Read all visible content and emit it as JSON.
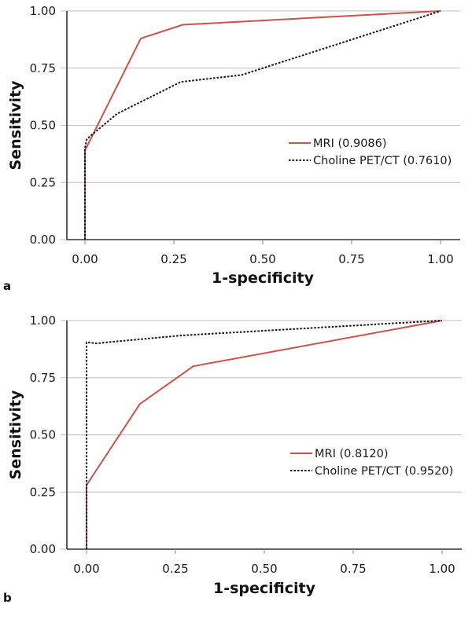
{
  "chart_data": [
    {
      "type": "line",
      "panel_label": "a",
      "title": "",
      "xlabel": "1-specificity",
      "ylabel": "Sensitivity",
      "xlim": [
        0,
        1
      ],
      "ylim": [
        0,
        1
      ],
      "x_ticks": [
        "0.00",
        "0.25",
        "0.50",
        "0.75",
        "1.00"
      ],
      "y_ticks": [
        "0.00",
        "0.25",
        "0.50",
        "0.75",
        "1.00"
      ],
      "grid": "horizontal",
      "legend_position": "middle-right",
      "series": [
        {
          "name": "MRI (0.9086)",
          "style": "solid",
          "color": "#d0504a",
          "x": [
            0.0,
            0.0,
            0.157,
            0.275,
            1.0
          ],
          "y": [
            0.0,
            0.39,
            0.88,
            0.94,
            1.0
          ]
        },
        {
          "name": "Choline PET/CT (0.7610)",
          "style": "dotted",
          "color": "#111111",
          "x": [
            0.0,
            0.0,
            0.005,
            0.09,
            0.27,
            0.44,
            1.0
          ],
          "y": [
            0.0,
            0.4,
            0.44,
            0.55,
            0.69,
            0.72,
            1.0
          ]
        }
      ]
    },
    {
      "type": "line",
      "panel_label": "b",
      "title": "",
      "xlabel": "1-specificity",
      "ylabel": "Sensitivity",
      "xlim": [
        0,
        1
      ],
      "ylim": [
        0,
        1
      ],
      "x_ticks": [
        "0.00",
        "0.25",
        "0.50",
        "0.75",
        "1.00"
      ],
      "y_ticks": [
        "0.00",
        "0.25",
        "0.50",
        "0.75",
        "1.00"
      ],
      "grid": "horizontal",
      "legend_position": "middle-right",
      "series": [
        {
          "name": "MRI (0.8120)",
          "style": "solid",
          "color": "#d0504a",
          "x": [
            0.0,
            0.0,
            0.15,
            0.3,
            1.0
          ],
          "y": [
            0.0,
            0.28,
            0.635,
            0.8,
            1.0
          ]
        },
        {
          "name": "Choline PET/CT (0.9520)",
          "style": "dotted",
          "color": "#111111",
          "x": [
            0.0,
            0.0,
            0.03,
            0.06,
            0.27,
            1.0
          ],
          "y": [
            0.0,
            0.905,
            0.9,
            0.905,
            0.935,
            1.0
          ]
        }
      ]
    }
  ]
}
